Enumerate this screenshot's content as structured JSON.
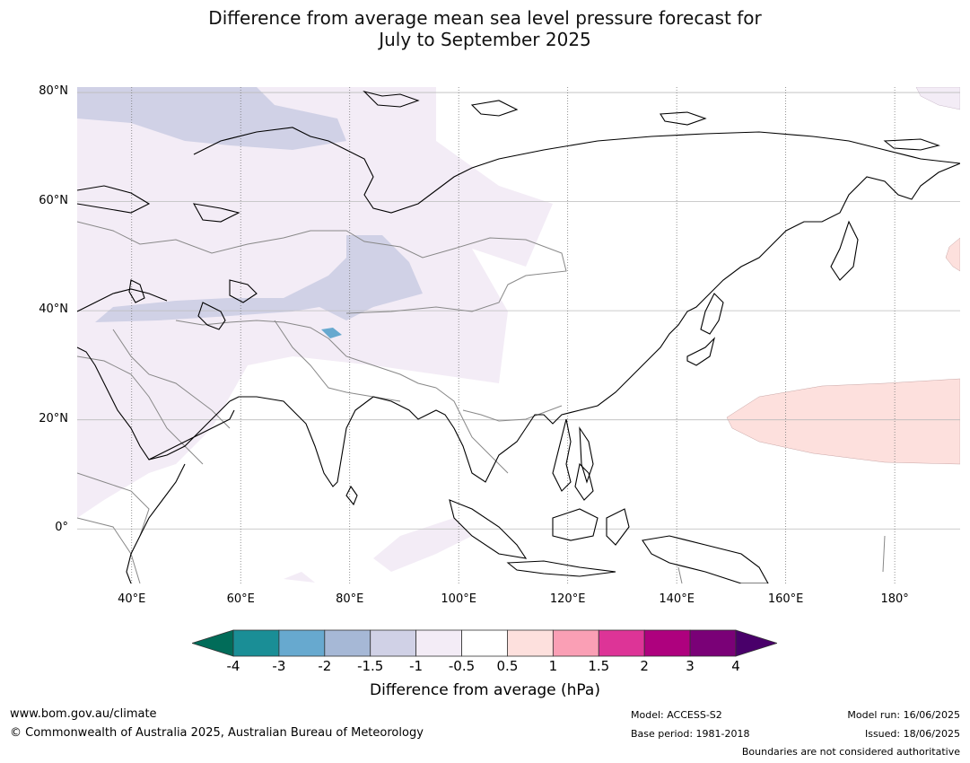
{
  "title_line1": "Difference from average mean sea level pressure forecast for",
  "title_line2": "July to September 2025",
  "map": {
    "lon_range": [
      30,
      192
    ],
    "lat_range": [
      -10,
      81
    ],
    "lat_ticks": [
      {
        "value": 80,
        "label": "80°N"
      },
      {
        "value": 60,
        "label": "60°N"
      },
      {
        "value": 40,
        "label": "40°N"
      },
      {
        "value": 20,
        "label": "20°N"
      },
      {
        "value": 0,
        "label": "0°"
      }
    ],
    "lon_ticks": [
      {
        "value": 40,
        "label": "40°E"
      },
      {
        "value": 60,
        "label": "60°E"
      },
      {
        "value": 80,
        "label": "80°E"
      },
      {
        "value": 100,
        "label": "100°E"
      },
      {
        "value": 120,
        "label": "120°E"
      },
      {
        "value": 140,
        "label": "140°E"
      },
      {
        "value": 160,
        "label": "160°E"
      },
      {
        "value": 180,
        "label": "180°"
      }
    ]
  },
  "colorbar": {
    "title": "Difference from average (hPa)",
    "ticks": [
      "-4",
      "-3",
      "-2",
      "-1.5",
      "-1",
      "-0.5",
      "0.5",
      "1",
      "1.5",
      "2",
      "3",
      "4"
    ],
    "bin_colors": [
      "#1a8e96",
      "#67a9cf",
      "#a6b8d6",
      "#d0d1e6",
      "#f3ecf6",
      "#ffffff",
      "#fde0dd",
      "#fa9fb5",
      "#dd3497",
      "#ae017e",
      "#7a0177"
    ],
    "under_color": "#016c59",
    "over_color": "#49006a"
  },
  "footer": {
    "website": "www.bom.gov.au/climate",
    "copyright": "© Commonwealth of Australia 2025, Australian Bureau of Meteorology",
    "model": "Model: ACCESS-S2",
    "base_period": "Base period: 1981-2018",
    "model_run": "Model run: 16/06/2025",
    "issued": "Issued: 18/06/2025",
    "disclaimer": "Boundaries are not considered authoritative"
  }
}
